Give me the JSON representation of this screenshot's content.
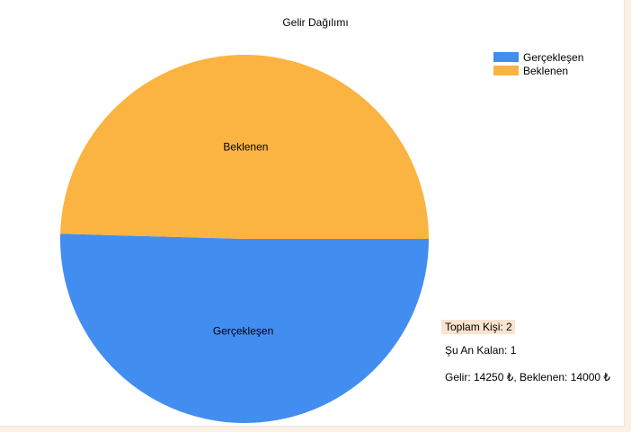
{
  "chart_data": {
    "type": "pie",
    "title": "Gelir Dağılımı",
    "slices": [
      {
        "label": "Gerçekleşen",
        "value": 14250,
        "color": "#428df0"
      },
      {
        "label": "Beklenen",
        "value": 14000,
        "color": "#fbb341"
      }
    ],
    "legend_position": "top-right",
    "start_angle_deg": 0,
    "direction": "clockwise",
    "data_labels": true
  },
  "info": {
    "total_people": "Toplam Kişi: 2",
    "remaining_now": "Şu An Kalan: 1",
    "income_summary": "Gelir: 14250 ₺, Beklenen: 14000 ₺"
  }
}
